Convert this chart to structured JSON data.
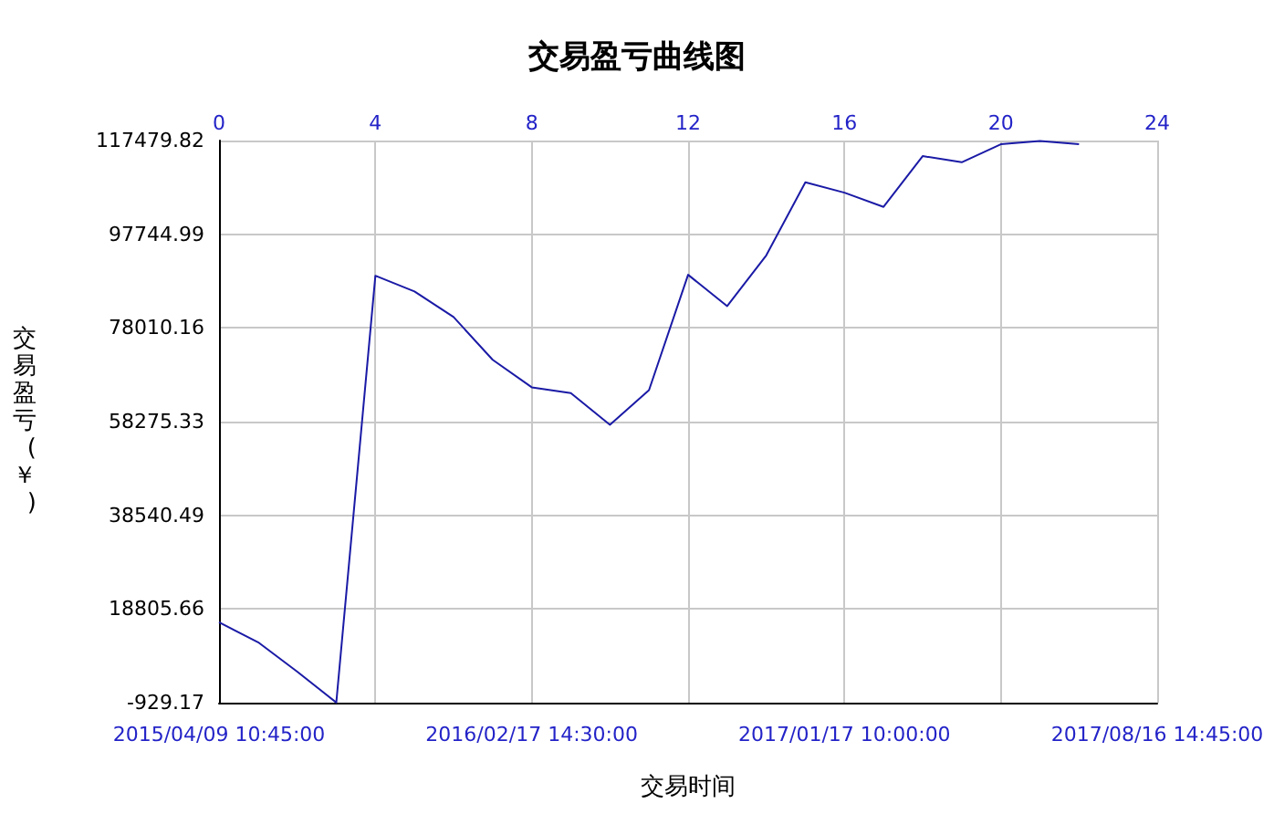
{
  "chart_data": {
    "type": "line",
    "title": "交易盈亏曲线图",
    "xlabel": "交易时间",
    "ylabel": "交易盈亏(￥)",
    "categories": [
      "2015/04/09 10:45:00",
      null,
      null,
      null,
      null,
      null,
      null,
      null,
      "2016/02/17 14:30:00",
      null,
      null,
      null,
      null,
      null,
      null,
      null,
      "2017/01/17 10:00:00",
      null,
      null,
      null,
      null,
      null,
      null,
      null,
      "2017/08/16 14:45:00"
    ],
    "series": [
      {
        "color": "#1a1aa6",
        "values": [
          16000,
          11800,
          5600,
          -900,
          89000,
          85700,
          80300,
          71300,
          65500,
          64300,
          57600,
          64900,
          89200,
          82600,
          93300,
          108700,
          106500,
          103500,
          114200,
          112900,
          116700,
          117400,
          116700,
          null,
          null
        ]
      }
    ],
    "x2lim": [
      0,
      24
    ],
    "x2ticks": [
      0,
      4,
      8,
      12,
      16,
      20,
      24
    ],
    "ylim": [
      -929.17,
      117479.82
    ],
    "yticks": [
      -929.17,
      18805.66,
      38540.49,
      58275.33,
      78010.16,
      97744.99,
      117479.82
    ],
    "grid": true,
    "marker": "none",
    "line_style": "solid"
  }
}
